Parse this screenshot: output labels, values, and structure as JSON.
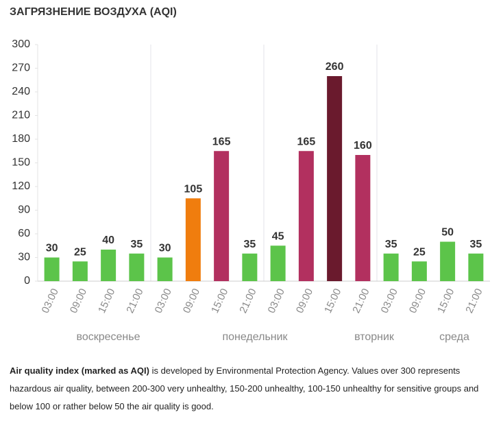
{
  "chart_data": {
    "type": "bar",
    "title": "ЗАГРЯЗНЕНИЕ ВОЗДУХА (AQI)",
    "categories": [
      "03:00",
      "09:00",
      "15:00",
      "21:00",
      "03:00",
      "09:00",
      "15:00",
      "21:00",
      "03:00",
      "09:00",
      "15:00",
      "21:00",
      "03:00",
      "09:00",
      "15:00",
      "21:00"
    ],
    "values": [
      30,
      25,
      40,
      35,
      30,
      105,
      165,
      35,
      45,
      165,
      260,
      160,
      35,
      25,
      50,
      35
    ],
    "colors": [
      "#5cc44a",
      "#5cc44a",
      "#5cc44a",
      "#5cc44a",
      "#5cc44a",
      "#f07d0e",
      "#b2305f",
      "#5cc44a",
      "#5cc44a",
      "#b2305f",
      "#6a1a2d",
      "#b2305f",
      "#5cc44a",
      "#5cc44a",
      "#5cc44a",
      "#5cc44a"
    ],
    "days": [
      "воскресенье",
      "понедельник",
      "вторник",
      "среда"
    ],
    "ylim": [
      0,
      300
    ],
    "yticks": [
      0,
      30,
      60,
      90,
      120,
      150,
      180,
      210,
      240,
      270,
      300
    ]
  },
  "note": {
    "bold": "Air quality index (marked as AQI)",
    "text": " is developed by Environmental Protection Agency. Values over 300 represents hazardous air quality, between 200-300 very unhealthy, 150-200 unhealthy, 100-150 unhealthy for sensitive groups and below 100 or rather below 50 the air quality is good."
  }
}
